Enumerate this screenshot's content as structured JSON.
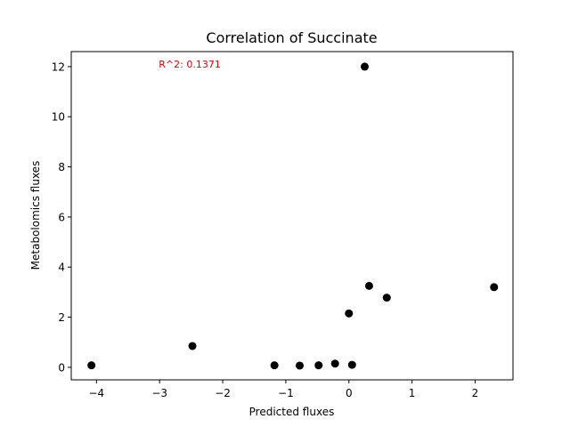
{
  "chart_data": {
    "type": "scatter",
    "title": "Correlation of Succinate",
    "xlabel": "Predicted fluxes",
    "ylabel": "Metabolomics fluxes",
    "xlim": [
      -4.4,
      2.6
    ],
    "ylim": [
      -0.5,
      12.6
    ],
    "xticks": [
      -4,
      -3,
      -2,
      -1,
      0,
      1,
      2
    ],
    "yticks": [
      0,
      2,
      4,
      6,
      8,
      10,
      12
    ],
    "xtick_labels": [
      "−4",
      "−3",
      "−2",
      "−1",
      "0",
      "1",
      "2"
    ],
    "ytick_labels": [
      "0",
      "2",
      "4",
      "6",
      "8",
      "10",
      "12"
    ],
    "grid": false,
    "point_color": "#000000",
    "annotation": {
      "text": "R^2: 0.1371",
      "color": "#e8000b",
      "x": -2.0,
      "y": 12.1
    },
    "points": [
      {
        "x": -4.08,
        "y": 0.08
      },
      {
        "x": -2.48,
        "y": 0.85
      },
      {
        "x": -1.18,
        "y": 0.08
      },
      {
        "x": -0.78,
        "y": 0.07
      },
      {
        "x": -0.48,
        "y": 0.08
      },
      {
        "x": -0.22,
        "y": 0.15
      },
      {
        "x": 0.0,
        "y": 2.15
      },
      {
        "x": 0.05,
        "y": 0.1
      },
      {
        "x": 0.25,
        "y": 12.0
      },
      {
        "x": 0.32,
        "y": 3.25
      },
      {
        "x": 0.6,
        "y": 2.78
      },
      {
        "x": 2.3,
        "y": 3.2
      }
    ]
  }
}
